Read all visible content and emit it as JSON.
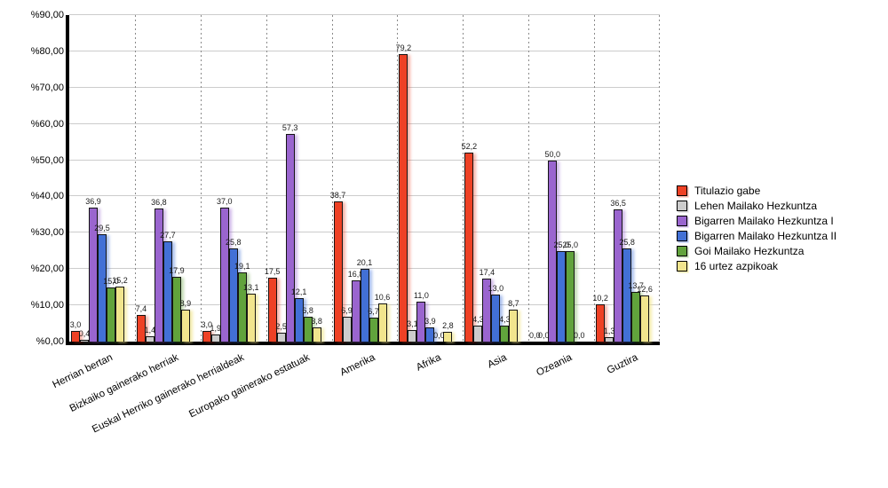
{
  "chart_data": {
    "type": "bar",
    "title": "",
    "xlabel": "",
    "ylabel": "",
    "ylim": [
      0,
      90
    ],
    "grid": true,
    "legend_position": "right",
    "y_ticks": [
      "%0,00",
      "%10,00",
      "%20,00",
      "%30,00",
      "%40,00",
      "%50,00",
      "%60,00",
      "%70,00",
      "%80,00",
      "%90,00"
    ],
    "categories": [
      "Herrian bertan",
      "Bizkaiko gainerako herriak",
      "Euskal Herriko gainerako herrialdeak",
      "Europako gainerako estatuak",
      "Amerika",
      "Afrika",
      "Asia",
      "Ozeania",
      "Guztira"
    ],
    "series": [
      {
        "name": "Titulazio gabe",
        "color": "#ee4125",
        "shadow": "rgba(238,65,37,0.40)",
        "values": [
          3.0,
          7.4,
          3.0,
          17.5,
          38.7,
          79.2,
          52.2,
          0.0,
          10.2
        ]
      },
      {
        "name": "Lehen Mailako Hezkuntza",
        "color": "#cccccc",
        "shadow": "rgba(150,150,150,0.40)",
        "values": [
          0.4,
          1.4,
          1.9,
          2.5,
          6.9,
          3.1,
          4.3,
          0.0,
          1.3
        ]
      },
      {
        "name": "Bigarren Mailako Hezkuntza I",
        "color": "#9a65cf",
        "shadow": "rgba(154,101,207,0.45)",
        "values": [
          36.9,
          36.8,
          37.0,
          57.3,
          16.8,
          11.0,
          17.4,
          50.0,
          36.5
        ]
      },
      {
        "name": "Bigarren Mailako Hezkuntza II",
        "color": "#4270d6",
        "shadow": "rgba(66,112,214,0.45)",
        "values": [
          29.5,
          27.7,
          25.8,
          12.1,
          20.1,
          3.9,
          13.0,
          25.0,
          25.8
        ]
      },
      {
        "name": "Goi Mailako Hezkuntza",
        "color": "#61a33c",
        "shadow": "rgba(97,163,60,0.40)",
        "values": [
          15.0,
          17.9,
          19.1,
          6.8,
          6.7,
          0.0,
          4.3,
          25.0,
          13.7
        ]
      },
      {
        "name": "16 urtez azpikoak",
        "color": "#f1e58d",
        "shadow": "rgba(241,229,141,0.70)",
        "values": [
          15.2,
          8.9,
          13.1,
          3.8,
          10.6,
          2.8,
          8.7,
          0.0,
          12.6
        ]
      }
    ],
    "decimal_separator": ","
  }
}
